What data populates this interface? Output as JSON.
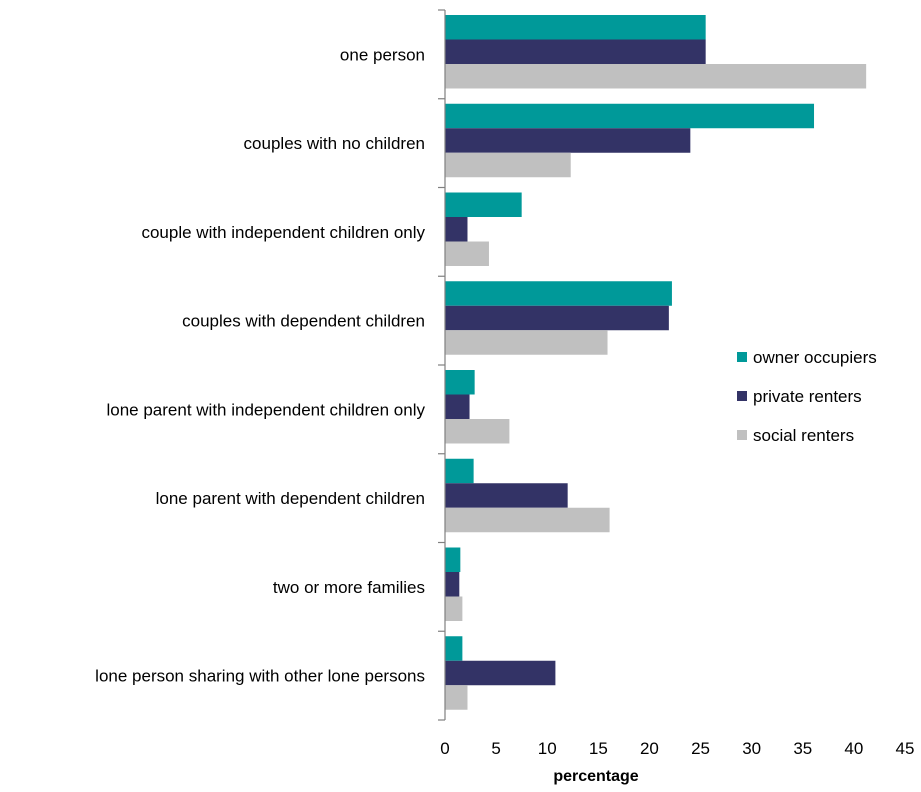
{
  "chart_data": {
    "type": "bar",
    "orientation": "horizontal",
    "categories": [
      "one person",
      "couples with no children",
      "couple with independent children only",
      "couples with dependent children",
      "lone parent with independent children only",
      "lone parent with dependent children",
      "two or more families",
      "lone person sharing with other lone persons"
    ],
    "series": [
      {
        "name": "owner occupiers",
        "color": "#009999",
        "values": [
          25.5,
          36.1,
          7.5,
          22.2,
          2.9,
          2.8,
          1.5,
          1.7
        ]
      },
      {
        "name": "private renters",
        "color": "#333366",
        "values": [
          25.5,
          24.0,
          2.2,
          21.9,
          2.4,
          12.0,
          1.4,
          10.8
        ]
      },
      {
        "name": "social renters",
        "color": "#c0c0c0",
        "values": [
          41.2,
          12.3,
          4.3,
          15.9,
          6.3,
          16.1,
          1.7,
          2.2
        ]
      }
    ],
    "xlabel": "percentage",
    "ylabel": "",
    "xlim": [
      0,
      45
    ],
    "xticks": [
      0,
      5,
      10,
      15,
      20,
      25,
      30,
      35,
      40,
      45
    ],
    "grid": false,
    "legend_position": "right"
  }
}
